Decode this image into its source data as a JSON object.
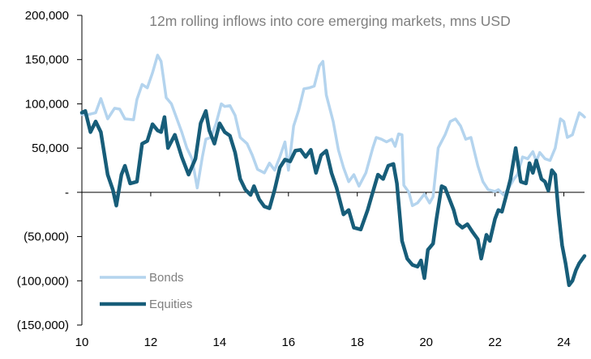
{
  "chart_data": {
    "type": "line",
    "title": "12m rolling inflows into core emerging markets, mns USD",
    "xlabel": "",
    "ylabel": "",
    "xlim": [
      2010,
      2024.6
    ],
    "ylim": [
      -150000,
      200000
    ],
    "y_ticks": [
      200000,
      150000,
      100000,
      50000,
      0,
      -50000,
      -100000,
      -150000
    ],
    "y_tick_labels": [
      "200,000",
      "150,000",
      "100,000",
      "50,000",
      "-",
      "(50,000)",
      "(100,000)",
      "(150,000)"
    ],
    "x_ticks": [
      2010,
      2012,
      2014,
      2016,
      2018,
      2020,
      2022,
      2024
    ],
    "x_tick_labels": [
      "10",
      "12",
      "14",
      "16",
      "18",
      "20",
      "22",
      "24"
    ],
    "grid": false,
    "legend": "bottom-left",
    "series": [
      {
        "name": "Bonds",
        "color": "#b4d4ee",
        "points": [
          [
            2010.0,
            88000
          ],
          [
            2010.2,
            88000
          ],
          [
            2010.4,
            90000
          ],
          [
            2010.55,
            106000
          ],
          [
            2010.75,
            83000
          ],
          [
            2010.95,
            95000
          ],
          [
            2011.1,
            94000
          ],
          [
            2011.25,
            83000
          ],
          [
            2011.5,
            82000
          ],
          [
            2011.6,
            105000
          ],
          [
            2011.75,
            122000
          ],
          [
            2011.9,
            118000
          ],
          [
            2012.05,
            135000
          ],
          [
            2012.2,
            155000
          ],
          [
            2012.3,
            148000
          ],
          [
            2012.45,
            107000
          ],
          [
            2012.6,
            100000
          ],
          [
            2012.75,
            84000
          ],
          [
            2012.9,
            68000
          ],
          [
            2013.05,
            50000
          ],
          [
            2013.2,
            38000
          ],
          [
            2013.35,
            5000
          ],
          [
            2013.5,
            40000
          ],
          [
            2013.6,
            60000
          ],
          [
            2013.75,
            62000
          ],
          [
            2013.9,
            78000
          ],
          [
            2014.05,
            100000
          ],
          [
            2014.15,
            97000
          ],
          [
            2014.3,
            98000
          ],
          [
            2014.45,
            87000
          ],
          [
            2014.6,
            62000
          ],
          [
            2014.8,
            55000
          ],
          [
            2014.95,
            42000
          ],
          [
            2015.1,
            26000
          ],
          [
            2015.3,
            22000
          ],
          [
            2015.45,
            33000
          ],
          [
            2015.6,
            25000
          ],
          [
            2015.75,
            40000
          ],
          [
            2015.9,
            57000
          ],
          [
            2016.0,
            25000
          ],
          [
            2016.15,
            75000
          ],
          [
            2016.3,
            93000
          ],
          [
            2016.45,
            117000
          ],
          [
            2016.6,
            118000
          ],
          [
            2016.75,
            120000
          ],
          [
            2016.9,
            143000
          ],
          [
            2017.0,
            148000
          ],
          [
            2017.1,
            110000
          ],
          [
            2017.3,
            80000
          ],
          [
            2017.45,
            48000
          ],
          [
            2017.6,
            28000
          ],
          [
            2017.75,
            12000
          ],
          [
            2017.9,
            20000
          ],
          [
            2018.05,
            7000
          ],
          [
            2018.25,
            22000
          ],
          [
            2018.45,
            50000
          ],
          [
            2018.55,
            62000
          ],
          [
            2018.7,
            60000
          ],
          [
            2018.85,
            57000
          ],
          [
            2019.0,
            60000
          ],
          [
            2019.1,
            52000
          ],
          [
            2019.2,
            66000
          ],
          [
            2019.3,
            65000
          ],
          [
            2019.35,
            8000
          ],
          [
            2019.5,
            0
          ],
          [
            2019.6,
            -15000
          ],
          [
            2019.75,
            -12000
          ],
          [
            2019.95,
            -2000
          ],
          [
            2020.1,
            -12000
          ],
          [
            2020.2,
            -5000
          ],
          [
            2020.35,
            50000
          ],
          [
            2020.55,
            65000
          ],
          [
            2020.7,
            80000
          ],
          [
            2020.85,
            83000
          ],
          [
            2021.0,
            75000
          ],
          [
            2021.15,
            60000
          ],
          [
            2021.3,
            62000
          ],
          [
            2021.5,
            30000
          ],
          [
            2021.65,
            12000
          ],
          [
            2021.8,
            3000
          ],
          [
            2022.0,
            1000
          ],
          [
            2022.1,
            3000
          ],
          [
            2022.25,
            -3000
          ],
          [
            2022.4,
            5000
          ],
          [
            2022.55,
            15000
          ],
          [
            2022.65,
            20000
          ],
          [
            2022.8,
            40000
          ],
          [
            2022.95,
            38000
          ],
          [
            2023.1,
            46000
          ],
          [
            2023.2,
            35000
          ],
          [
            2023.3,
            45000
          ],
          [
            2023.45,
            38000
          ],
          [
            2023.6,
            36000
          ],
          [
            2023.75,
            50000
          ],
          [
            2023.9,
            83000
          ],
          [
            2024.0,
            80000
          ],
          [
            2024.1,
            62000
          ],
          [
            2024.25,
            65000
          ],
          [
            2024.35,
            78000
          ],
          [
            2024.45,
            90000
          ],
          [
            2024.55,
            87000
          ],
          [
            2024.6,
            85000
          ]
        ]
      },
      {
        "name": "Equities",
        "color": "#175d79",
        "points": [
          [
            2010.0,
            90000
          ],
          [
            2010.1,
            92000
          ],
          [
            2010.25,
            68000
          ],
          [
            2010.4,
            80000
          ],
          [
            2010.55,
            68000
          ],
          [
            2010.75,
            20000
          ],
          [
            2010.9,
            3000
          ],
          [
            2011.0,
            -15000
          ],
          [
            2011.15,
            20000
          ],
          [
            2011.25,
            30000
          ],
          [
            2011.4,
            10000
          ],
          [
            2011.6,
            12000
          ],
          [
            2011.75,
            55000
          ],
          [
            2011.9,
            58000
          ],
          [
            2012.05,
            77000
          ],
          [
            2012.2,
            70000
          ],
          [
            2012.3,
            68000
          ],
          [
            2012.4,
            85000
          ],
          [
            2012.5,
            50000
          ],
          [
            2012.7,
            65000
          ],
          [
            2012.9,
            40000
          ],
          [
            2013.1,
            20000
          ],
          [
            2013.3,
            38000
          ],
          [
            2013.45,
            78000
          ],
          [
            2013.6,
            92000
          ],
          [
            2013.7,
            70000
          ],
          [
            2013.85,
            55000
          ],
          [
            2014.0,
            78000
          ],
          [
            2014.15,
            68000
          ],
          [
            2014.3,
            64000
          ],
          [
            2014.45,
            45000
          ],
          [
            2014.6,
            15000
          ],
          [
            2014.75,
            3000
          ],
          [
            2014.9,
            -3000
          ],
          [
            2015.0,
            7000
          ],
          [
            2015.15,
            -8000
          ],
          [
            2015.3,
            -16000
          ],
          [
            2015.45,
            -18000
          ],
          [
            2015.6,
            3000
          ],
          [
            2015.75,
            28000
          ],
          [
            2015.9,
            37000
          ],
          [
            2016.05,
            35000
          ],
          [
            2016.2,
            47000
          ],
          [
            2016.35,
            48000
          ],
          [
            2016.5,
            40000
          ],
          [
            2016.65,
            48000
          ],
          [
            2016.8,
            22000
          ],
          [
            2016.95,
            42000
          ],
          [
            2017.1,
            47000
          ],
          [
            2017.25,
            22000
          ],
          [
            2017.4,
            5000
          ],
          [
            2017.6,
            -25000
          ],
          [
            2017.75,
            -20000
          ],
          [
            2017.9,
            -40000
          ],
          [
            2018.1,
            -42000
          ],
          [
            2018.3,
            -20000
          ],
          [
            2018.45,
            0
          ],
          [
            2018.6,
            20000
          ],
          [
            2018.75,
            15000
          ],
          [
            2018.9,
            30000
          ],
          [
            2019.05,
            32000
          ],
          [
            2019.15,
            10000
          ],
          [
            2019.3,
            -55000
          ],
          [
            2019.45,
            -75000
          ],
          [
            2019.6,
            -82000
          ],
          [
            2019.75,
            -84000
          ],
          [
            2019.85,
            -77000
          ],
          [
            2019.95,
            -97000
          ],
          [
            2020.05,
            -65000
          ],
          [
            2020.2,
            -58000
          ],
          [
            2020.3,
            -30000
          ],
          [
            2020.45,
            7000
          ],
          [
            2020.55,
            5000
          ],
          [
            2020.7,
            -10000
          ],
          [
            2020.8,
            -20000
          ],
          [
            2020.9,
            -35000
          ],
          [
            2021.05,
            -40000
          ],
          [
            2021.2,
            -36000
          ],
          [
            2021.35,
            -45000
          ],
          [
            2021.5,
            -53000
          ],
          [
            2021.6,
            -75000
          ],
          [
            2021.75,
            -48000
          ],
          [
            2021.85,
            -55000
          ],
          [
            2022.0,
            -30000
          ],
          [
            2022.1,
            -20000
          ],
          [
            2022.2,
            -22000
          ],
          [
            2022.35,
            0
          ],
          [
            2022.45,
            15000
          ],
          [
            2022.6,
            50000
          ],
          [
            2022.75,
            12000
          ],
          [
            2022.9,
            10000
          ],
          [
            2023.0,
            33000
          ],
          [
            2023.1,
            22000
          ],
          [
            2023.2,
            36000
          ],
          [
            2023.35,
            15000
          ],
          [
            2023.45,
            12000
          ],
          [
            2023.55,
            2000
          ],
          [
            2023.65,
            25000
          ],
          [
            2023.75,
            20000
          ],
          [
            2023.85,
            -25000
          ],
          [
            2023.95,
            -60000
          ],
          [
            2024.05,
            -80000
          ],
          [
            2024.15,
            -105000
          ],
          [
            2024.25,
            -100000
          ],
          [
            2024.35,
            -88000
          ],
          [
            2024.45,
            -80000
          ],
          [
            2024.6,
            -72000
          ]
        ]
      }
    ]
  }
}
